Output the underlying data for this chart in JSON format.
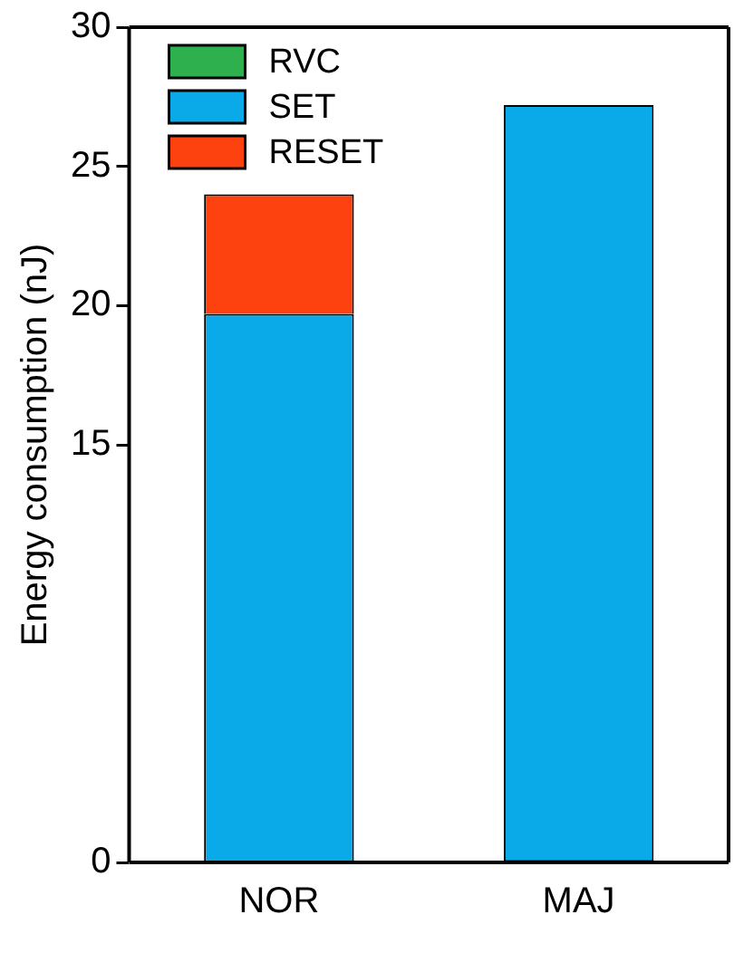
{
  "chart_data": {
    "type": "bar",
    "stacked": true,
    "ylabel": "Energy consumption (nJ)",
    "categories": [
      "NOR",
      "MAJ"
    ],
    "series": [
      {
        "name": "RVC",
        "color": "#2eb04f",
        "values": [
          0,
          0.1
        ]
      },
      {
        "name": "SET",
        "color": "#0aaae8",
        "values": [
          19.7,
          27.1
        ]
      },
      {
        "name": "RESET",
        "color": "#fd420f",
        "values": [
          4.3,
          0
        ]
      }
    ],
    "ylim": [
      0,
      30
    ],
    "yticks": [
      0,
      15,
      20,
      25,
      30
    ],
    "grid": false,
    "legend": "top left"
  }
}
